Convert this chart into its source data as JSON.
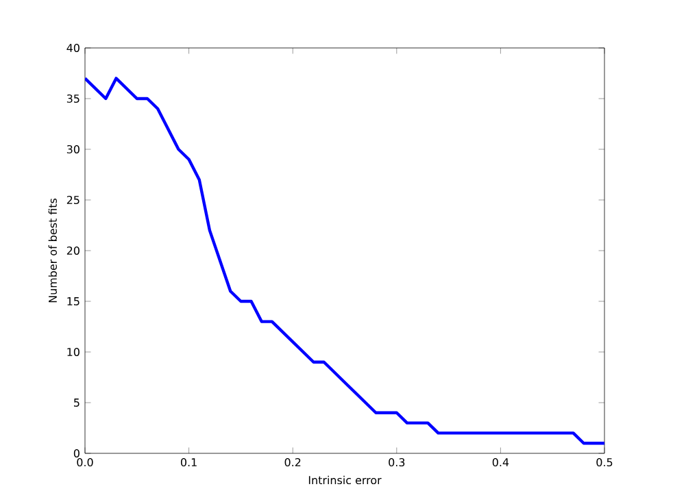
{
  "chart_data": {
    "type": "line",
    "xlabel": "Intrinsic error",
    "ylabel": "Number of best fits",
    "x": [
      0,
      0.02,
      0.03,
      0.05,
      0.06,
      0.07,
      0.09,
      0.1,
      0.11,
      0.12,
      0.14,
      0.15,
      0.16,
      0.17,
      0.18,
      0.22,
      0.23,
      0.28,
      0.3,
      0.31,
      0.33,
      0.34,
      0.47,
      0.48,
      0.5
    ],
    "series": [
      {
        "color": "#0000ff",
        "values": [
          37,
          35,
          37,
          35,
          35,
          34,
          30,
          29,
          27,
          22,
          16,
          15,
          15,
          13,
          13,
          9,
          9,
          4,
          4,
          3,
          3,
          2,
          2,
          1,
          1
        ]
      }
    ],
    "xlim": [
      0,
      0.5
    ],
    "ylim": [
      0,
      40
    ],
    "xticks": [
      {
        "value": 0,
        "label": "0.0"
      },
      {
        "value": 0.1,
        "label": "0.1"
      },
      {
        "value": 0.2,
        "label": "0.2"
      },
      {
        "value": 0.3,
        "label": "0.3"
      },
      {
        "value": 0.4,
        "label": "0.4"
      },
      {
        "value": 0.5,
        "label": "0.5"
      }
    ],
    "yticks": [
      0,
      5,
      10,
      15,
      20,
      25,
      30,
      35,
      40
    ],
    "grid": false,
    "marker": "none",
    "line_style": "solid"
  }
}
